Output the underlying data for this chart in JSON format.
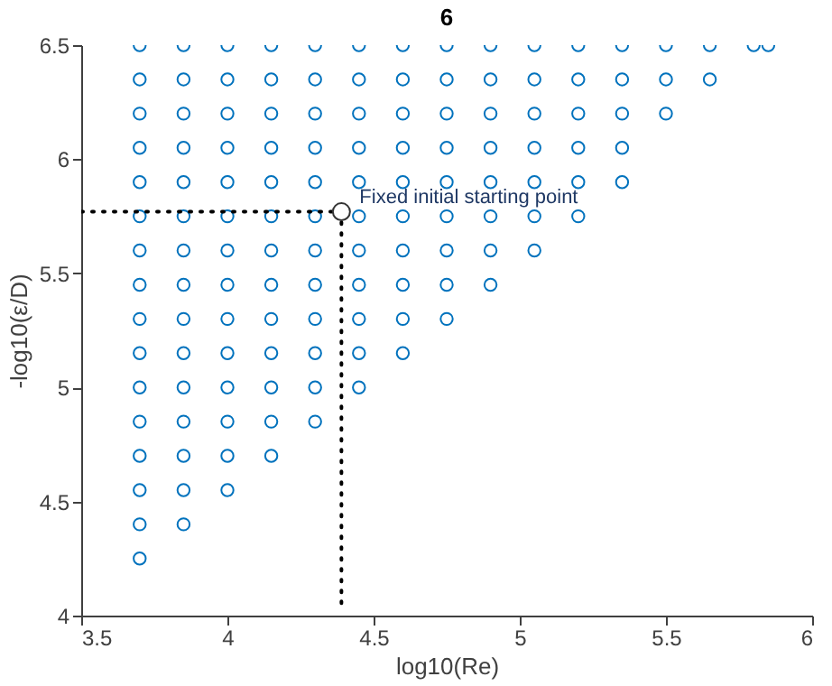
{
  "chart_data": {
    "type": "scatter",
    "title": "6",
    "xlabel": "log10(Re)",
    "ylabel": "-log10(ε/D)",
    "xlim": [
      3.5,
      6
    ],
    "xticks": [
      3.5,
      4,
      4.5,
      5,
      5.5,
      6
    ],
    "ylim": [
      4,
      6.5
    ],
    "yticks": [
      4,
      4.5,
      5,
      5.5,
      6,
      6.5
    ],
    "grid": false,
    "series": [
      {
        "color": "#0072bd",
        "marker": "circle",
        "x": [
          3.7,
          3.7,
          3.7,
          3.7,
          3.7,
          3.7,
          3.7,
          3.7,
          3.7,
          3.7,
          3.7,
          3.7,
          3.7,
          3.7,
          3.7,
          3.7,
          3.85,
          3.85,
          3.85,
          3.85,
          3.85,
          3.85,
          3.85,
          3.85,
          3.85,
          3.85,
          3.85,
          3.85,
          3.85,
          3.85,
          3.85,
          4,
          4,
          4,
          4,
          4,
          4,
          4,
          4,
          4,
          4,
          4,
          4,
          4,
          4,
          4.15,
          4.15,
          4.15,
          4.15,
          4.15,
          4.15,
          4.15,
          4.15,
          4.15,
          4.15,
          4.15,
          4.15,
          4.15,
          4.3,
          4.3,
          4.3,
          4.3,
          4.3,
          4.3,
          4.3,
          4.3,
          4.3,
          4.3,
          4.3,
          4.3,
          4.45,
          4.45,
          4.45,
          4.45,
          4.45,
          4.45,
          4.45,
          4.45,
          4.45,
          4.45,
          4.45,
          4.6,
          4.6,
          4.6,
          4.6,
          4.6,
          4.6,
          4.6,
          4.6,
          4.6,
          4.6,
          4.75,
          4.75,
          4.75,
          4.75,
          4.75,
          4.75,
          4.75,
          4.75,
          4.75,
          4.9,
          4.9,
          4.9,
          4.9,
          4.9,
          4.9,
          4.9,
          4.9,
          5.05,
          5.05,
          5.05,
          5.05,
          5.05,
          5.05,
          5.05,
          5.2,
          5.2,
          5.2,
          5.2,
          5.2,
          5.2,
          5.35,
          5.35,
          5.35,
          5.35,
          5.35,
          5.5,
          5.5,
          5.5,
          5.65,
          5.65,
          5.8,
          5.85
        ],
        "values": [
          6.5,
          6.35,
          6.2,
          6.05,
          5.9,
          5.75,
          5.6,
          5.45,
          5.3,
          5.15,
          5,
          4.85,
          4.7,
          4.55,
          4.4,
          4.25,
          6.5,
          6.35,
          6.2,
          6.05,
          5.9,
          5.75,
          5.6,
          5.45,
          5.3,
          5.15,
          5,
          4.85,
          4.7,
          4.55,
          4.4,
          6.5,
          6.35,
          6.2,
          6.05,
          5.9,
          5.75,
          5.6,
          5.45,
          5.3,
          5.15,
          5,
          4.85,
          4.7,
          4.55,
          6.5,
          6.35,
          6.2,
          6.05,
          5.9,
          5.75,
          5.6,
          5.45,
          5.3,
          5.15,
          5,
          4.85,
          4.7,
          6.5,
          6.35,
          6.2,
          6.05,
          5.9,
          5.75,
          5.6,
          5.45,
          5.3,
          5.15,
          5,
          4.85,
          6.5,
          6.35,
          6.2,
          6.05,
          5.9,
          5.75,
          5.6,
          5.45,
          5.3,
          5.15,
          5,
          6.5,
          6.35,
          6.2,
          6.05,
          5.9,
          5.75,
          5.6,
          5.45,
          5.3,
          5.15,
          6.5,
          6.35,
          6.2,
          6.05,
          5.9,
          5.75,
          5.6,
          5.45,
          5.3,
          6.5,
          6.35,
          6.2,
          6.05,
          5.9,
          5.75,
          5.6,
          5.45,
          6.5,
          6.35,
          6.2,
          6.05,
          5.9,
          5.75,
          5.6,
          6.5,
          6.35,
          6.2,
          6.05,
          5.9,
          5.75,
          6.5,
          6.35,
          6.2,
          6.05,
          5.9,
          6.5,
          6.35,
          6.2,
          6.5,
          6.35,
          6.5,
          6.5
        ]
      },
      {
        "type": "line",
        "color": "#000000",
        "line_style": "dotted",
        "x": [
          3.5,
          4.39,
          4.39
        ],
        "values": [
          5.77,
          5.77,
          4.05
        ]
      },
      {
        "color": "#ffffff",
        "marker": "circle",
        "x": [
          4.39
        ],
        "values": [
          5.77
        ]
      }
    ],
    "annotations": [
      {
        "text": "Fixed initial starting point",
        "x": 4.39,
        "y": 5.77
      }
    ]
  }
}
